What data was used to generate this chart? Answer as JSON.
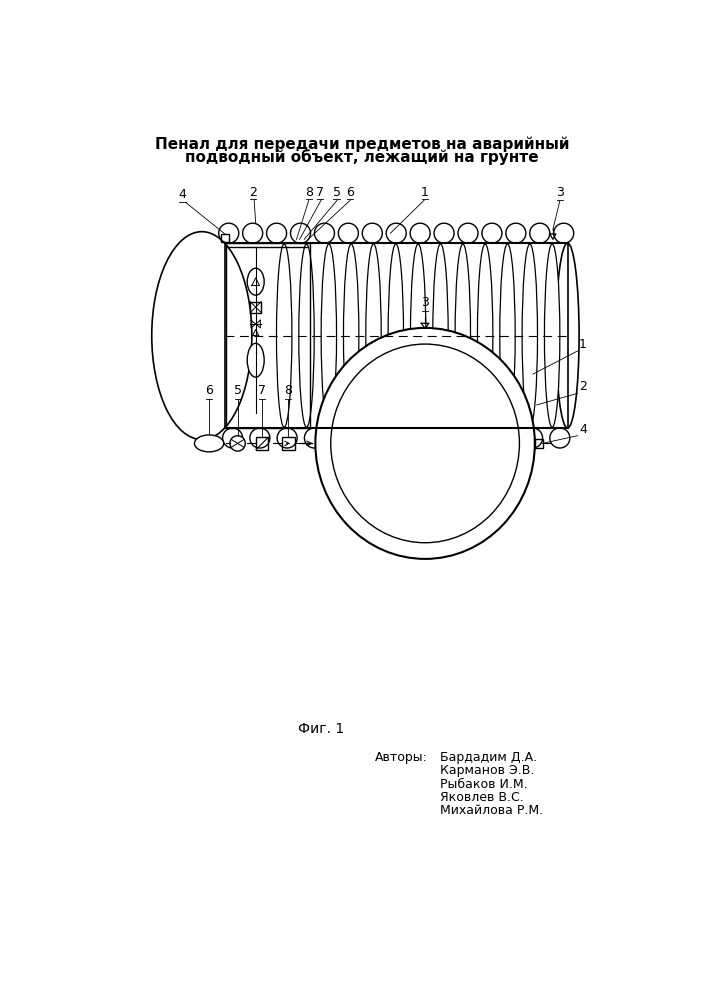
{
  "title_line1": "Пенал для передачи предметов на аварийный",
  "title_line2": "подводный объект, лежащий на грунте",
  "fig_label": "Фиг. 1",
  "authors_label": "Авторы:",
  "authors": [
    "Бардадим Д.А.",
    "Карманов Э.В.",
    "Рыбаков И.М.",
    "Яковлев В.С.",
    "Михайлова Р.М."
  ],
  "bg_color": "#ffffff",
  "line_color": "#000000"
}
